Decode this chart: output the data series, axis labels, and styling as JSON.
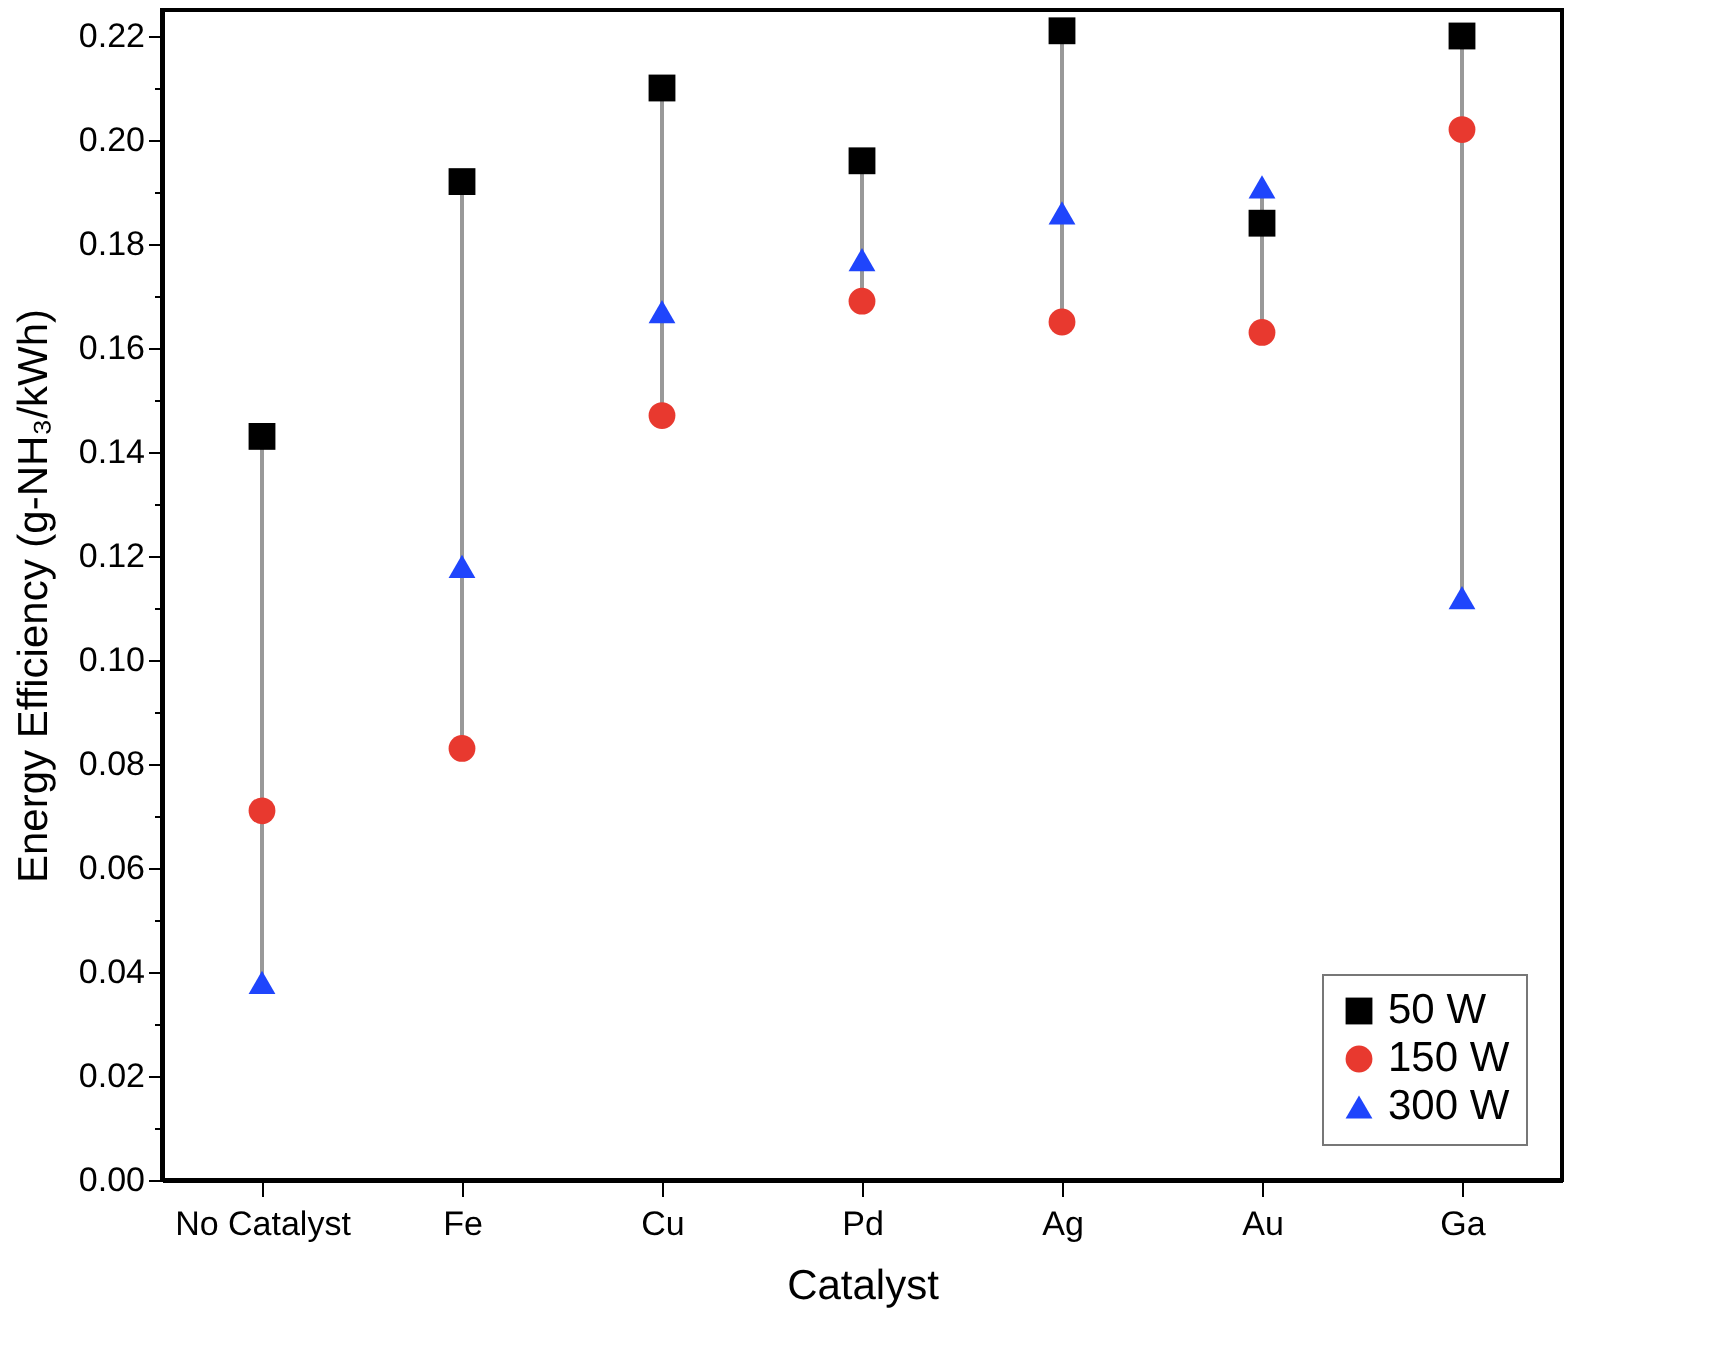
{
  "chart_data": {
    "type": "scatter",
    "xlabel": "Catalyst",
    "ylabel": "Energy Efficiency (g-NH₃/kWh)",
    "categories": [
      "No Catalyst",
      "Fe",
      "Cu",
      "Pd",
      "Ag",
      "Au",
      "Ga"
    ],
    "series": [
      {
        "name": "50 W",
        "color": "#000000",
        "marker": "square",
        "values": [
          0.143,
          0.192,
          0.21,
          0.196,
          0.221,
          0.184,
          0.22
        ]
      },
      {
        "name": "150 W",
        "color": "#e8392f",
        "marker": "circle",
        "values": [
          0.071,
          0.083,
          0.147,
          0.169,
          0.165,
          0.163,
          0.202
        ]
      },
      {
        "name": "300 W",
        "color": "#1f45fc",
        "marker": "triangle",
        "values": [
          0.038,
          0.118,
          0.167,
          0.177,
          0.186,
          0.191,
          0.112
        ]
      }
    ],
    "ylim": [
      0,
      0.225
    ],
    "yticks": [
      {
        "value": 0,
        "label": "0.00"
      },
      {
        "value": 0.01,
        "label": null
      },
      {
        "value": 0.02,
        "label": "0.02"
      },
      {
        "value": 0.03,
        "label": null
      },
      {
        "value": 0.04,
        "label": "0.04"
      },
      {
        "value": 0.05,
        "label": null
      },
      {
        "value": 0.06,
        "label": "0.06"
      },
      {
        "value": 0.07,
        "label": null
      },
      {
        "value": 0.08,
        "label": "0.08"
      },
      {
        "value": 0.09,
        "label": null
      },
      {
        "value": 0.1,
        "label": "0.10"
      },
      {
        "value": 0.11,
        "label": null
      },
      {
        "value": 0.12,
        "label": "0.12"
      },
      {
        "value": 0.13,
        "label": null
      },
      {
        "value": 0.14,
        "label": "0.14"
      },
      {
        "value": 0.15,
        "label": null
      },
      {
        "value": 0.16,
        "label": "0.16"
      },
      {
        "value": 0.17,
        "label": null
      },
      {
        "value": 0.18,
        "label": "0.18"
      },
      {
        "value": 0.19,
        "label": null
      },
      {
        "value": 0.2,
        "label": "0.20"
      },
      {
        "value": 0.21,
        "label": null
      },
      {
        "value": 0.22,
        "label": "0.22"
      }
    ],
    "grid": false,
    "legend": "bottom right"
  }
}
